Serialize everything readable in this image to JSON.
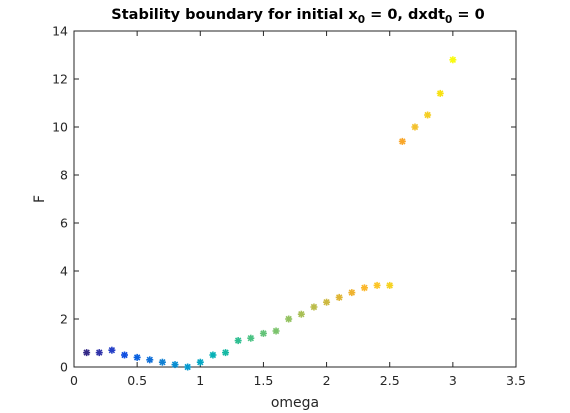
{
  "chart_data": {
    "type": "scatter",
    "title": {
      "prefix": "Stability boundary for initial x",
      "sub1": "0",
      "middle": " = 0, dxdt",
      "sub2": "0",
      "suffix": " = 0"
    },
    "xlabel": "omega",
    "ylabel": "F",
    "xlim": [
      0,
      3.5
    ],
    "ylim": [
      0,
      14
    ],
    "xticks": [
      0,
      0.5,
      1,
      1.5,
      2,
      2.5,
      3,
      3.5
    ],
    "xtick_labels": [
      "0",
      "0.5",
      "1",
      "1.5",
      "2",
      "2.5",
      "3",
      "3.5"
    ],
    "yticks": [
      0,
      2,
      4,
      6,
      8,
      10,
      12,
      14
    ],
    "ytick_labels": [
      "0",
      "2",
      "4",
      "6",
      "8",
      "10",
      "12",
      "14"
    ],
    "grid": false,
    "colormap": "parula",
    "marker": "*",
    "x": [
      0.1,
      0.2,
      0.3,
      0.4,
      0.5,
      0.6,
      0.7,
      0.8,
      0.9,
      1.0,
      1.1,
      1.2,
      1.3,
      1.4,
      1.5,
      1.6,
      1.7,
      1.8,
      1.9,
      2.0,
      2.1,
      2.2,
      2.3,
      2.4,
      2.5,
      2.6,
      2.7,
      2.8,
      2.9,
      3.0
    ],
    "y": [
      0.6,
      0.6,
      0.7,
      0.5,
      0.4,
      0.3,
      0.2,
      0.1,
      0.0,
      0.2,
      0.5,
      0.6,
      1.1,
      1.2,
      1.4,
      1.5,
      2.0,
      2.2,
      2.5,
      2.7,
      2.9,
      3.1,
      3.3,
      3.4,
      3.4,
      9.4,
      10.0,
      10.5,
      11.4,
      12.8
    ],
    "colors": [
      "#352a87",
      "#3134a9",
      "#253fc7",
      "#0f4fe1",
      "#0961e0",
      "#1170d9",
      "#1180d3",
      "#088ed2",
      "#069ad0",
      "#05a7c4",
      "#06b1b6",
      "#15b9a3",
      "#2ebe91",
      "#4ac283",
      "#63c378",
      "#7bc36c",
      "#93c260",
      "#a8bf55",
      "#bbbc4b",
      "#cdb940",
      "#dfb535",
      "#efb22e",
      "#fbb72c",
      "#fcc526",
      "#f6d21f",
      "#f9a629",
      "#f3c12e",
      "#f5ce23",
      "#f8e110",
      "#f9fb0e"
    ]
  }
}
